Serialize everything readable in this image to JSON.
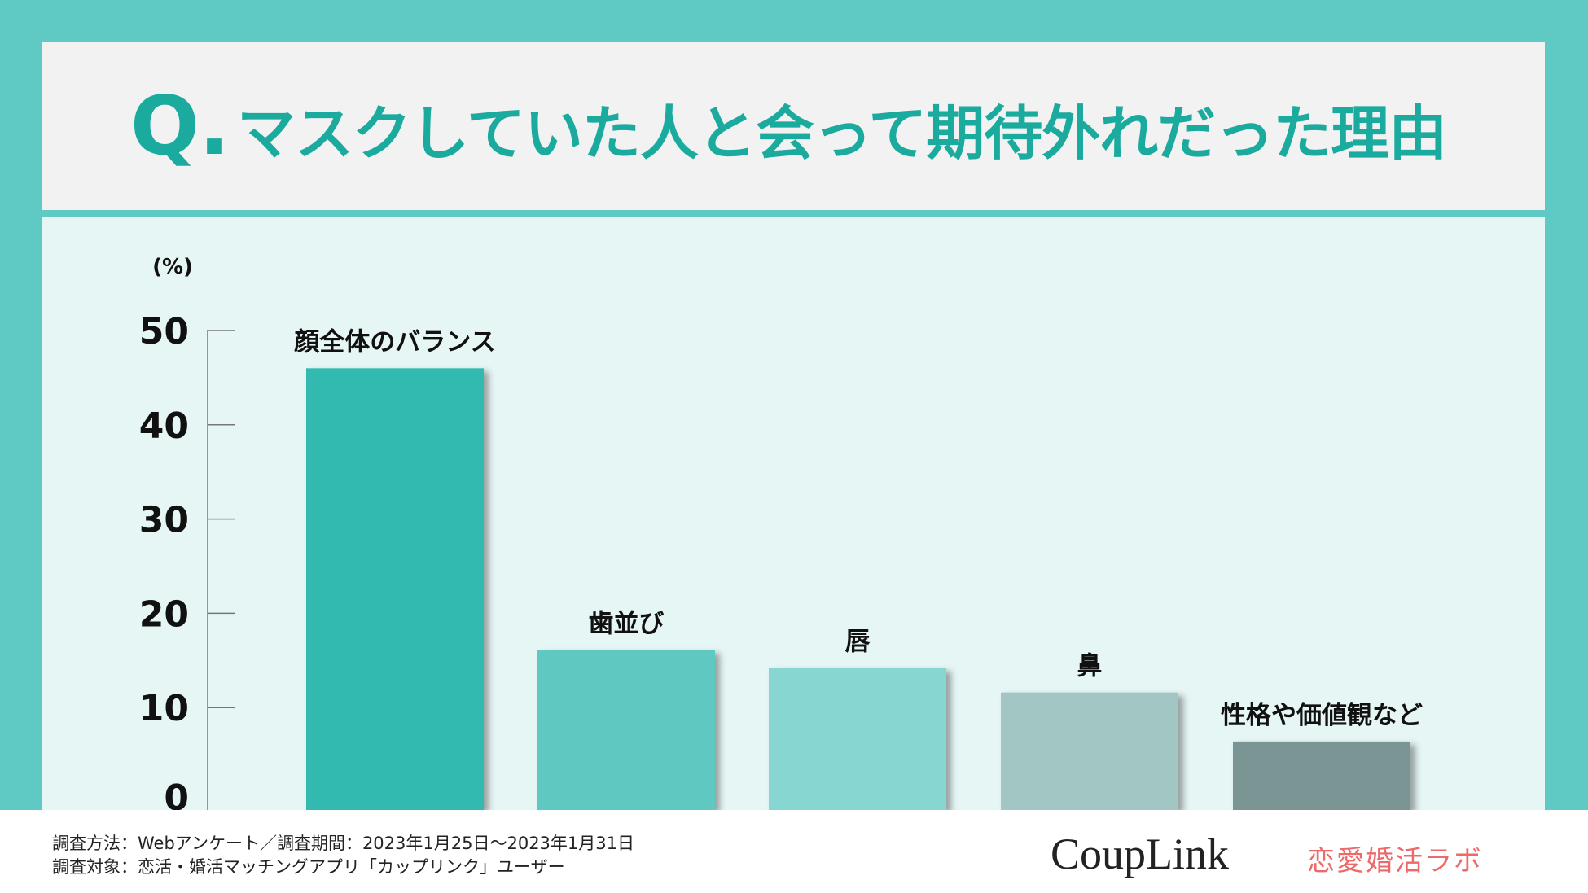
{
  "title": {
    "prefix": "Q.",
    "text": "マスクしていた人と会って期待外れだった理由"
  },
  "chart_data": {
    "type": "bar",
    "title": "マスクしていた人と会って期待外れだった理由",
    "ylabel": "(%)",
    "ylim": [
      0,
      50
    ],
    "yticks": [
      0,
      10,
      20,
      30,
      40,
      50
    ],
    "grid": false,
    "categories": [
      "顔全体のバランス",
      "歯並び",
      "唇",
      "鼻",
      "性格や価値観など"
    ],
    "values": [
      46.0,
      16.1,
      14.2,
      11.6,
      6.4
    ],
    "colors": [
      "#33BAB1",
      "#5EC8C1",
      "#88D6D1",
      "#A1C6C4",
      "#7A9593"
    ]
  },
  "footer": {
    "line1": "調査方法：Webアンケート／調査期間：2023年1月25日〜2023年1月31日",
    "line2": "調査対象：恋活・婚活マッチングアプリ「カップリンク」ユーザー",
    "logo_couplink": "CoupLink",
    "logo_lab": "恋愛婚活ラボ"
  },
  "colors": {
    "frame": "#5ECAC3",
    "title": "#1BAA9E",
    "panel": "#E6F6F5"
  }
}
